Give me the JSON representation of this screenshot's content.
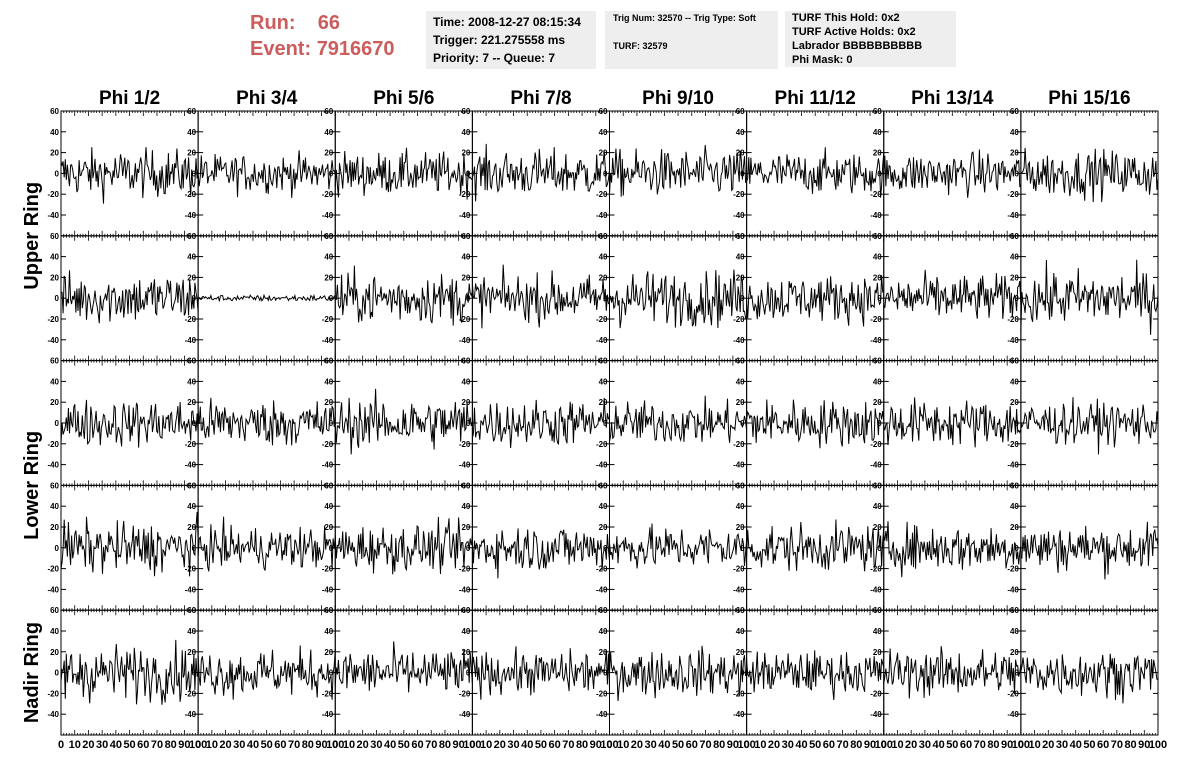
{
  "header": {
    "run_label": "Run:",
    "run_value": "66",
    "event_label": "Event:",
    "event_value": "7916670",
    "time": "Time: 2008-12-27 08:15:34",
    "trigger": "Trigger: 221.275558 ms",
    "priority": "Priority: 7 -- Queue: 7",
    "trig_num": "Trig Num: 32570 -- Trig Type: Soft",
    "turf": "TURF: 32579",
    "turf_this_hold": "TURF This Hold: 0x2",
    "turf_active_holds": "TURF Active Holds: 0x2",
    "labrador": "Labrador BBBBBBBBBB",
    "phi_mask": "Phi Mask: 0"
  },
  "colors": {
    "header_red": "#cd5c5c",
    "info_bg": "#eeeeee",
    "trace": "#000000"
  },
  "chart_data": {
    "type": "line",
    "title": "",
    "column_labels": [
      "Phi 1/2",
      "Phi 3/4",
      "Phi 5/6",
      "Phi 7/8",
      "Phi 9/10",
      "Phi 11/12",
      "Phi 13/14",
      "Phi 15/16"
    ],
    "ring_labels": [
      "Upper Ring",
      "Lower Ring",
      "Nadir Ring"
    ],
    "rows_per_ring": [
      2,
      2,
      1
    ],
    "rows": 5,
    "xlim": [
      0,
      100
    ],
    "ylim": [
      -60,
      60
    ],
    "x_ticks": [
      0,
      10,
      20,
      30,
      40,
      50,
      60,
      70,
      80,
      90,
      100
    ],
    "y_ticks": [
      -40,
      -20,
      0,
      20,
      40,
      60
    ],
    "samples_per_trace": 130,
    "trace_rms": [
      [
        11,
        9,
        10,
        11,
        11,
        10,
        10,
        11
      ],
      [
        12,
        1.5,
        12,
        11,
        13,
        11,
        11,
        13
      ],
      [
        11,
        11,
        12,
        11,
        10,
        11,
        11,
        10
      ],
      [
        12,
        10,
        11,
        11,
        10,
        11,
        11,
        11
      ],
      [
        13,
        11,
        11,
        10,
        11,
        10,
        11,
        11
      ]
    ]
  }
}
